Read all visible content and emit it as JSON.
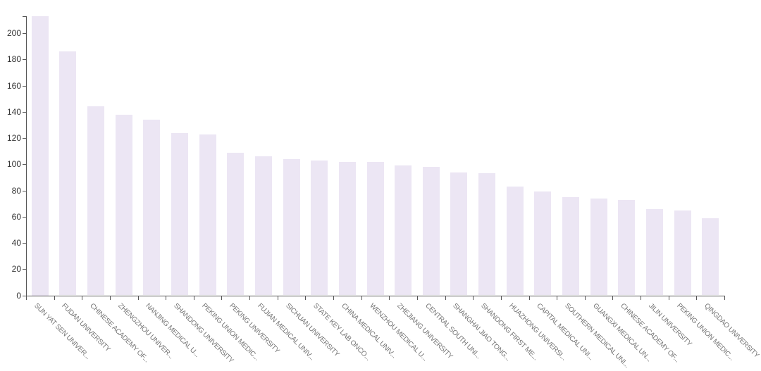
{
  "chart_data": {
    "type": "bar",
    "title": "",
    "xlabel": "",
    "ylabel": "",
    "categories": [
      "SUN YAT SEN UNIVER...",
      "FUDAN UNIVERSITY",
      "CHINESE ACADEMY OF...",
      "ZHENGZHOU UNIVER...",
      "NANJING MEDICAL U...",
      "SHANDONG UNIVERSITY",
      "PEKING UNION MEDIC...",
      "PEKING UNIVERSITY",
      "FUJIAN MEDICAL UNIV...",
      "SICHUAN UNIVERSITY",
      "STATE KEY LAB ONCO...",
      "CHINA MEDICAL UNIV...",
      "WENZHOU MEDICAL U...",
      "ZHEJIANG UNIVERSITY",
      "CENTRAL SOUTH UNI...",
      "SHANGHAI JIAO TONG...",
      "SHANDONG FIRST ME...",
      "HUAZHONG UNIVERSI...",
      "CAPITAL MEDICAL UNI...",
      "SOUTHERN MEDICAL UNI...",
      "GUANGXI MEDICAL UN...",
      "CHINESE ACADEMY OF...",
      "JILIN UNIVERSITY",
      "PEKING UNION MEDIC...",
      "QINGDAO UNIVERSITY"
    ],
    "values": [
      213,
      186,
      144,
      138,
      134,
      124,
      123,
      109,
      106,
      104,
      103,
      102,
      102,
      99,
      98,
      94,
      93,
      83,
      79,
      75,
      74,
      73,
      66,
      65,
      59
    ],
    "ylim": [
      0,
      213
    ],
    "ytick_labels": [
      "0",
      "20",
      "40",
      "60",
      "80",
      "100",
      "120",
      "140",
      "160",
      "180",
      "200"
    ],
    "ytick_values": [
      0,
      20,
      40,
      60,
      80,
      100,
      120,
      140,
      160,
      180,
      200
    ],
    "grid": false,
    "legend": null,
    "x_label_rotation_deg": 45,
    "colors": {
      "bar_fill": "#ece6f4",
      "axis": "#555555",
      "y_tick_label": "#333333",
      "x_tick_label": "#757575",
      "background": "#ffffff"
    }
  }
}
